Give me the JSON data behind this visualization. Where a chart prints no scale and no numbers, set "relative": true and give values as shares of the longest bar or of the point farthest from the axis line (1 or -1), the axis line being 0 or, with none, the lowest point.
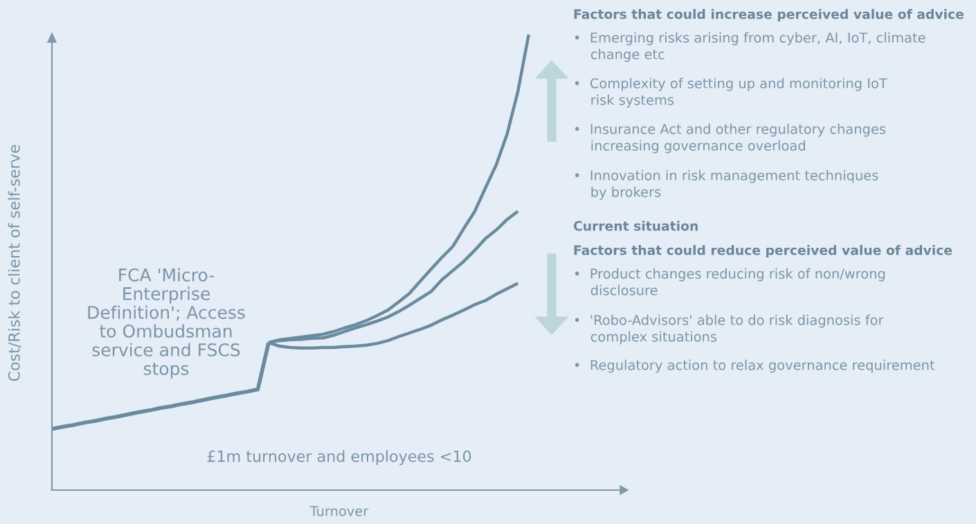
{
  "chart_data": {
    "type": "line",
    "relative": true,
    "xlabel": "Turnover",
    "ylabel": "Cost/Risk to client of self-serve",
    "categories": [
      null,
      null,
      null,
      null,
      null,
      null,
      null,
      null,
      null,
      null,
      null,
      null,
      null,
      null,
      null,
      null,
      null,
      null,
      null,
      null,
      null,
      null,
      null,
      null,
      null,
      null,
      null,
      null,
      null,
      null,
      null,
      null,
      null,
      null,
      null,
      null,
      null,
      null,
      null,
      null,
      null,
      null,
      null,
      null,
      null,
      null,
      null,
      null,
      null,
      null,
      null,
      null,
      null
    ],
    "marker": "none",
    "line_style": "solid",
    "series": [
      {
        "color": "#6a8a9e",
        "values": [
          0.134,
          0.139,
          0.143,
          0.148,
          0.152,
          0.157,
          0.161,
          0.166,
          0.171,
          0.175,
          0.18,
          0.184,
          0.189,
          0.193,
          0.198,
          0.203,
          0.207,
          0.212,
          0.216,
          0.221,
          0.324,
          null,
          null,
          null,
          null,
          null,
          null,
          null,
          null,
          null,
          null,
          null,
          null,
          null,
          null,
          null,
          null,
          null,
          null,
          null,
          null,
          null,
          null,
          null,
          null,
          null,
          null,
          null,
          null,
          null,
          null,
          null,
          null
        ]
      },
      {
        "color": "#6a8a9e",
        "values": [
          null,
          null,
          null,
          null,
          null,
          null,
          null,
          null,
          null,
          null,
          null,
          null,
          null,
          null,
          null,
          null,
          null,
          null,
          null,
          null,
          0.324,
          0.33,
          0.333,
          0.336,
          0.339,
          0.342,
          0.348,
          0.356,
          0.363,
          0.372,
          0.383,
          0.395,
          0.413,
          0.432,
          0.459,
          0.485,
          0.511,
          0.535,
          0.574,
          0.611,
          0.663,
          0.714,
          0.781,
          0.875,
          1,
          null,
          null,
          null,
          null,
          null,
          null,
          null,
          null
        ]
      },
      {
        "color": "#6a8a9e",
        "values": [
          null,
          null,
          null,
          null,
          null,
          null,
          null,
          null,
          null,
          null,
          null,
          null,
          null,
          null,
          null,
          null,
          null,
          null,
          null,
          null,
          0.324,
          0.328,
          0.33,
          0.331,
          0.333,
          0.334,
          0.34,
          0.348,
          0.356,
          0.363,
          0.371,
          0.38,
          0.392,
          0.406,
          0.421,
          0.436,
          0.462,
          0.482,
          0.502,
          0.526,
          0.552,
          0.571,
          0.594,
          0.612,
          null,
          null,
          null,
          null,
          null,
          null,
          null,
          null,
          null
        ]
      },
      {
        "color": "#6a8a9e",
        "values": [
          null,
          null,
          null,
          null,
          null,
          null,
          null,
          null,
          null,
          null,
          null,
          null,
          null,
          null,
          null,
          null,
          null,
          null,
          null,
          null,
          0.324,
          0.316,
          0.313,
          0.312,
          0.312,
          0.313,
          0.313,
          0.315,
          0.316,
          0.318,
          0.322,
          0.328,
          0.337,
          0.345,
          0.353,
          0.362,
          0.374,
          0.384,
          0.395,
          0.407,
          0.416,
          0.43,
          0.442,
          0.454,
          null,
          null,
          null,
          null,
          null,
          null,
          null,
          null,
          null
        ]
      }
    ],
    "annotations": [
      "Factors that could increase perceived value of advice",
      "•  Emerging risks arising from cyber, AI, IoT, climate\n    change etc",
      "•  Complexity of setting up and monitoring IoT\n    risk systems",
      "•  Insurance Act and other regulatory changes\n    increasing governance overload",
      "•  Innovation in risk management techniques\n    by brokers",
      "Current situation",
      "Factors that could reduce perceived value of advice",
      "•  Product changes reducing risk of non/wrong\n    disclosure",
      "•  'Robo-Advisors' able to do risk diagnosis for\n    complex situations",
      "•  Regulatory action to relax governance requirement",
      "FCA 'Micro-\nEnterprise\nDefinition'; Access\nto Ombudsman\nservice and FSCS\nstops",
      "£1m turnover and employees <10"
    ]
  }
}
